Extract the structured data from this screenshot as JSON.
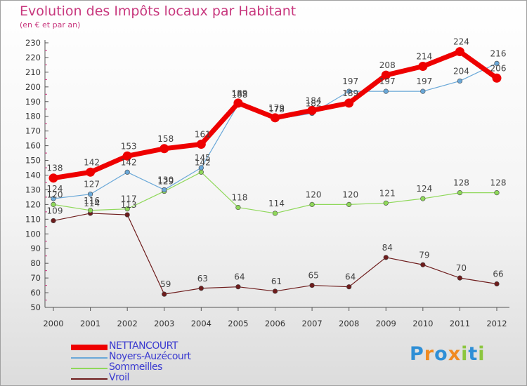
{
  "title": "Evolution des Impôts locaux par Habitant",
  "subtitle": "(en € et par an)",
  "logo": {
    "text": "Proxiti",
    "letter_colors": [
      "#2f8fd6",
      "#f08a20",
      "#2f8fd6",
      "#f08a20",
      "#8cc63f",
      "#2f8fd6",
      "#8cc63f"
    ]
  },
  "colors": {
    "title": "#c8387e",
    "legend_text": "#3a3ad0"
  },
  "chart_data": {
    "type": "line",
    "title": "Evolution des Impôts locaux par Habitant",
    "subtitle": "(en € et par an)",
    "x": [
      "2000",
      "2001",
      "2002",
      "2003",
      "2004",
      "2005",
      "2006",
      "2007",
      "2008",
      "2009",
      "2010",
      "2011",
      "2012"
    ],
    "y_ticks": [
      "50",
      "60",
      "70",
      "80",
      "90",
      "100",
      "110",
      "120",
      "130",
      "140",
      "150",
      "160",
      "170",
      "180",
      "190",
      "200",
      "210",
      "220",
      "230"
    ],
    "ylim": [
      50,
      230
    ],
    "grid": false,
    "legend_position": "bottom-left",
    "series": [
      {
        "name": "Vroil",
        "color": "#6e1c1c",
        "values": [
          109,
          114,
          113,
          59,
          63,
          64,
          61,
          65,
          64,
          84,
          79,
          70,
          66
        ]
      },
      {
        "name": "Sommeilles",
        "color": "#8fd85a",
        "values": [
          120,
          116,
          117,
          129,
          142,
          118,
          114,
          120,
          120,
          121,
          124,
          128,
          128
        ]
      },
      {
        "name": "Noyers-Auzécourt",
        "color": "#6aa8d8",
        "values": [
          124,
          127,
          142,
          130,
          145,
          188,
          178,
          182,
          197,
          197,
          197,
          204,
          216
        ]
      },
      {
        "name": "NETTANCOURT",
        "color": "#ee0000",
        "values": [
          138,
          142,
          153,
          158,
          161,
          189,
          179,
          184,
          189,
          208,
          214,
          224,
          206
        ]
      }
    ],
    "data_labels": {
      "Vroil": [
        "109",
        "114",
        "113",
        "59",
        "63",
        "64",
        "61",
        "65",
        "64",
        "84",
        "79",
        "70",
        "66"
      ],
      "Sommeilles": [
        "120",
        "116",
        "117",
        "129",
        "142",
        "118",
        "114",
        "120",
        "120",
        "121",
        "124",
        "128",
        "128"
      ],
      "Noyers-Auzécourt": [
        "124",
        "127",
        "142",
        "130",
        "145",
        "188",
        "178",
        "182",
        "197",
        "197",
        "197",
        "204",
        "216"
      ],
      "NETTANCOURT": [
        "138",
        "142",
        "153",
        "158",
        "161",
        "189",
        "179",
        "184",
        "189",
        "208",
        "214",
        "224",
        "206"
      ]
    },
    "legend": [
      "NETTANCOURT",
      "Noyers-Auzécourt",
      "Sommeilles",
      "Vroil"
    ]
  }
}
